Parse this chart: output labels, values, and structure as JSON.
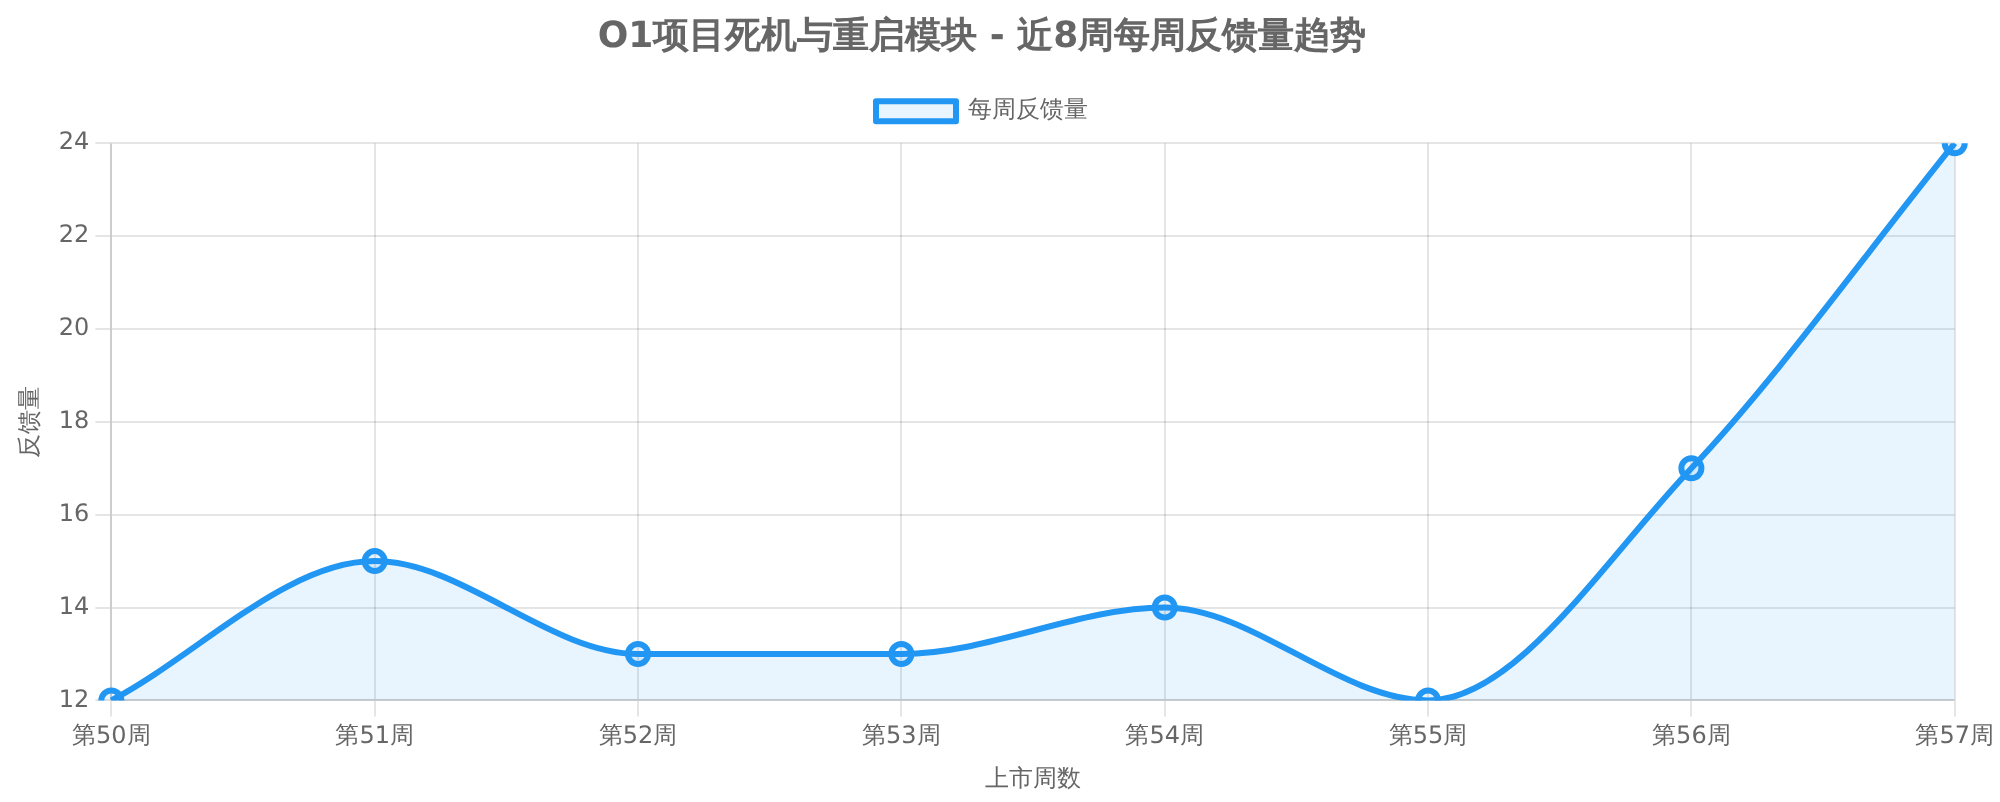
{
  "chart_data": {
    "type": "area",
    "title": "O1项目死机与重启模块 - 近8周每周反馈量趋势",
    "xlabel": "上市周数",
    "ylabel": "反馈量",
    "categories": [
      "第50周",
      "第51周",
      "第52周",
      "第53周",
      "第54周",
      "第55周",
      "第56周",
      "第57周"
    ],
    "series": [
      {
        "name": "每周反馈量",
        "color": "#2196f3",
        "values": [
          12,
          15,
          13,
          13,
          14,
          12,
          17,
          24
        ]
      }
    ],
    "ylim": [
      12,
      24
    ],
    "yticks": [
      12,
      14,
      16,
      18,
      20,
      22,
      24
    ],
    "grid": true,
    "legend": "top",
    "marker": "circle",
    "line_style": "solid"
  }
}
